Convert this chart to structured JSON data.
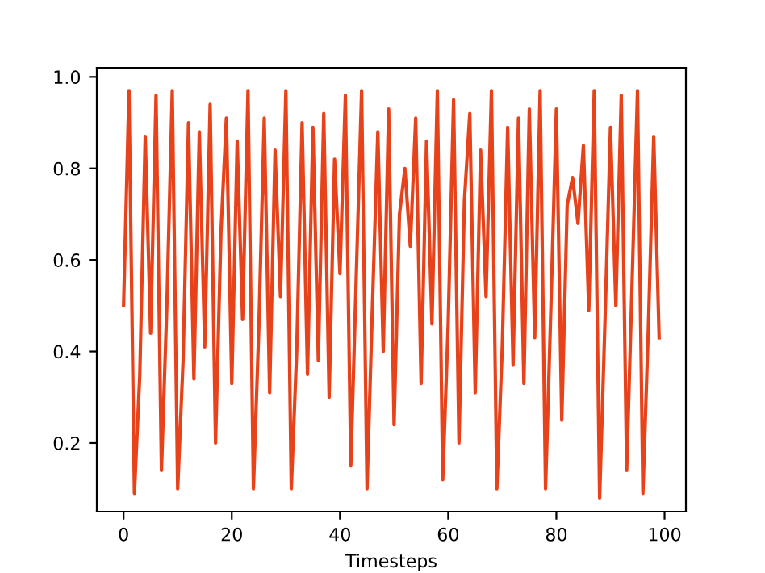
{
  "chart_data": {
    "type": "line",
    "xlabel": "Timesteps",
    "x": [
      0,
      1,
      2,
      3,
      4,
      5,
      6,
      7,
      8,
      9,
      10,
      11,
      12,
      13,
      14,
      15,
      16,
      17,
      18,
      19,
      20,
      21,
      22,
      23,
      24,
      25,
      26,
      27,
      28,
      29,
      30,
      31,
      32,
      33,
      34,
      35,
      36,
      37,
      38,
      39,
      40,
      41,
      42,
      43,
      44,
      45,
      46,
      47,
      48,
      49,
      50,
      51,
      52,
      53,
      54,
      55,
      56,
      57,
      58,
      59,
      60,
      61,
      62,
      63,
      64,
      65,
      66,
      67,
      68,
      69,
      70,
      71,
      72,
      73,
      74,
      75,
      76,
      77,
      78,
      79,
      80,
      81,
      82,
      83,
      84,
      85,
      86,
      87,
      88,
      89,
      90,
      91,
      92,
      93,
      94,
      95,
      96,
      97,
      98,
      99
    ],
    "series": [
      {
        "color": "#e8421a",
        "values": [
          0.5,
          0.97,
          0.09,
          0.35,
          0.87,
          0.44,
          0.96,
          0.14,
          0.5,
          0.97,
          0.1,
          0.38,
          0.9,
          0.34,
          0.88,
          0.41,
          0.94,
          0.2,
          0.66,
          0.91,
          0.33,
          0.86,
          0.47,
          0.97,
          0.1,
          0.45,
          0.91,
          0.31,
          0.84,
          0.52,
          0.97,
          0.1,
          0.4,
          0.9,
          0.35,
          0.89,
          0.38,
          0.92,
          0.3,
          0.82,
          0.57,
          0.96,
          0.15,
          0.56,
          0.97,
          0.1,
          0.5,
          0.88,
          0.4,
          0.93,
          0.24,
          0.7,
          0.8,
          0.63,
          0.91,
          0.33,
          0.86,
          0.46,
          0.97,
          0.12,
          0.46,
          0.95,
          0.2,
          0.73,
          0.92,
          0.31,
          0.84,
          0.52,
          0.97,
          0.1,
          0.41,
          0.89,
          0.37,
          0.91,
          0.33,
          0.93,
          0.43,
          0.97,
          0.1,
          0.5,
          0.93,
          0.25,
          0.72,
          0.78,
          0.68,
          0.85,
          0.49,
          0.97,
          0.08,
          0.47,
          0.89,
          0.5,
          0.96,
          0.14,
          0.55,
          0.97,
          0.09,
          0.45,
          0.87,
          0.43
        ]
      }
    ],
    "xlim": [
      -4.95,
      103.95
    ],
    "ylim": [
      0.05,
      1.02
    ],
    "xticks": [
      0,
      20,
      40,
      60,
      80,
      100
    ],
    "yticks": [
      {
        "value": 0.2,
        "label": "0.2"
      },
      {
        "value": 0.4,
        "label": "0.4"
      },
      {
        "value": 0.6,
        "label": "0.6"
      },
      {
        "value": 0.8,
        "label": "0.8"
      },
      {
        "value": 1.0,
        "label": "1.0"
      }
    ],
    "grid": false,
    "legend": false
  }
}
